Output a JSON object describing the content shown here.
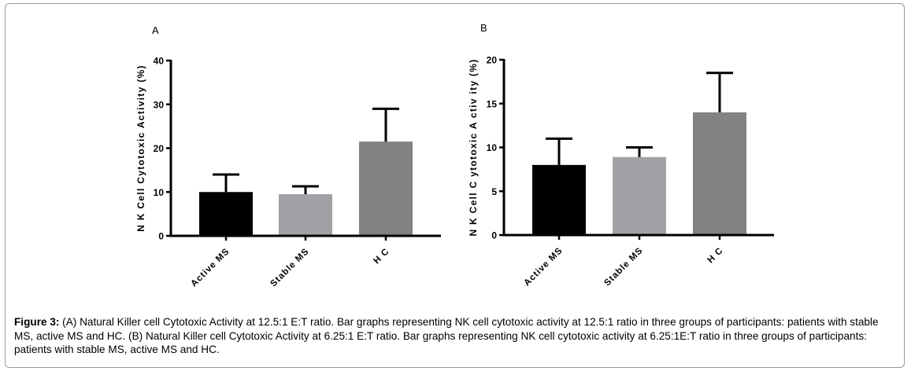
{
  "chart_data": [
    {
      "type": "bar",
      "panel_label": "A",
      "categories": [
        "Active MS",
        "Stable MS",
        "H C"
      ],
      "values": [
        10,
        9.5,
        21.5
      ],
      "error_upper": [
        14,
        11.3,
        29
      ],
      "colors": [
        "#000000",
        "#a1a1a6",
        "#828282"
      ],
      "ylabel": "N K  Cell  Cytotoxic  Activity  (%)",
      "ylim": [
        0,
        40
      ],
      "yticks": [
        0,
        10,
        20,
        30,
        40
      ],
      "grid": false,
      "legend": "none"
    },
    {
      "type": "bar",
      "panel_label": "B",
      "categories": [
        "Active MS",
        "Stable MS",
        "H C"
      ],
      "values": [
        8,
        8.9,
        14
      ],
      "error_upper": [
        11,
        10,
        18.5
      ],
      "colors": [
        "#000000",
        "#a1a1a6",
        "#828282"
      ],
      "ylabel": "N K  Cell  C ytotoxic  A ctiv ity  (%)",
      "ylim": [
        0,
        20
      ],
      "yticks": [
        0,
        5,
        10,
        15,
        20
      ],
      "grid": false,
      "legend": "none"
    }
  ],
  "caption": {
    "label": "Figure 3:",
    "text": " (A) Natural Killer cell Cytotoxic Activity at 12.5:1 E:T ratio. Bar graphs representing NK cell cytotoxic activity at 12.5:1 ratio in three groups of participants: patients with stable MS, active MS and HC. (B) Natural Killer cell Cytotoxic Activity at 6.25:1 E:T ratio. Bar graphs representing NK cell cytotoxic activity at 6.25:1E:T ratio in three groups of participants: patients with stable MS, active MS and HC."
  }
}
